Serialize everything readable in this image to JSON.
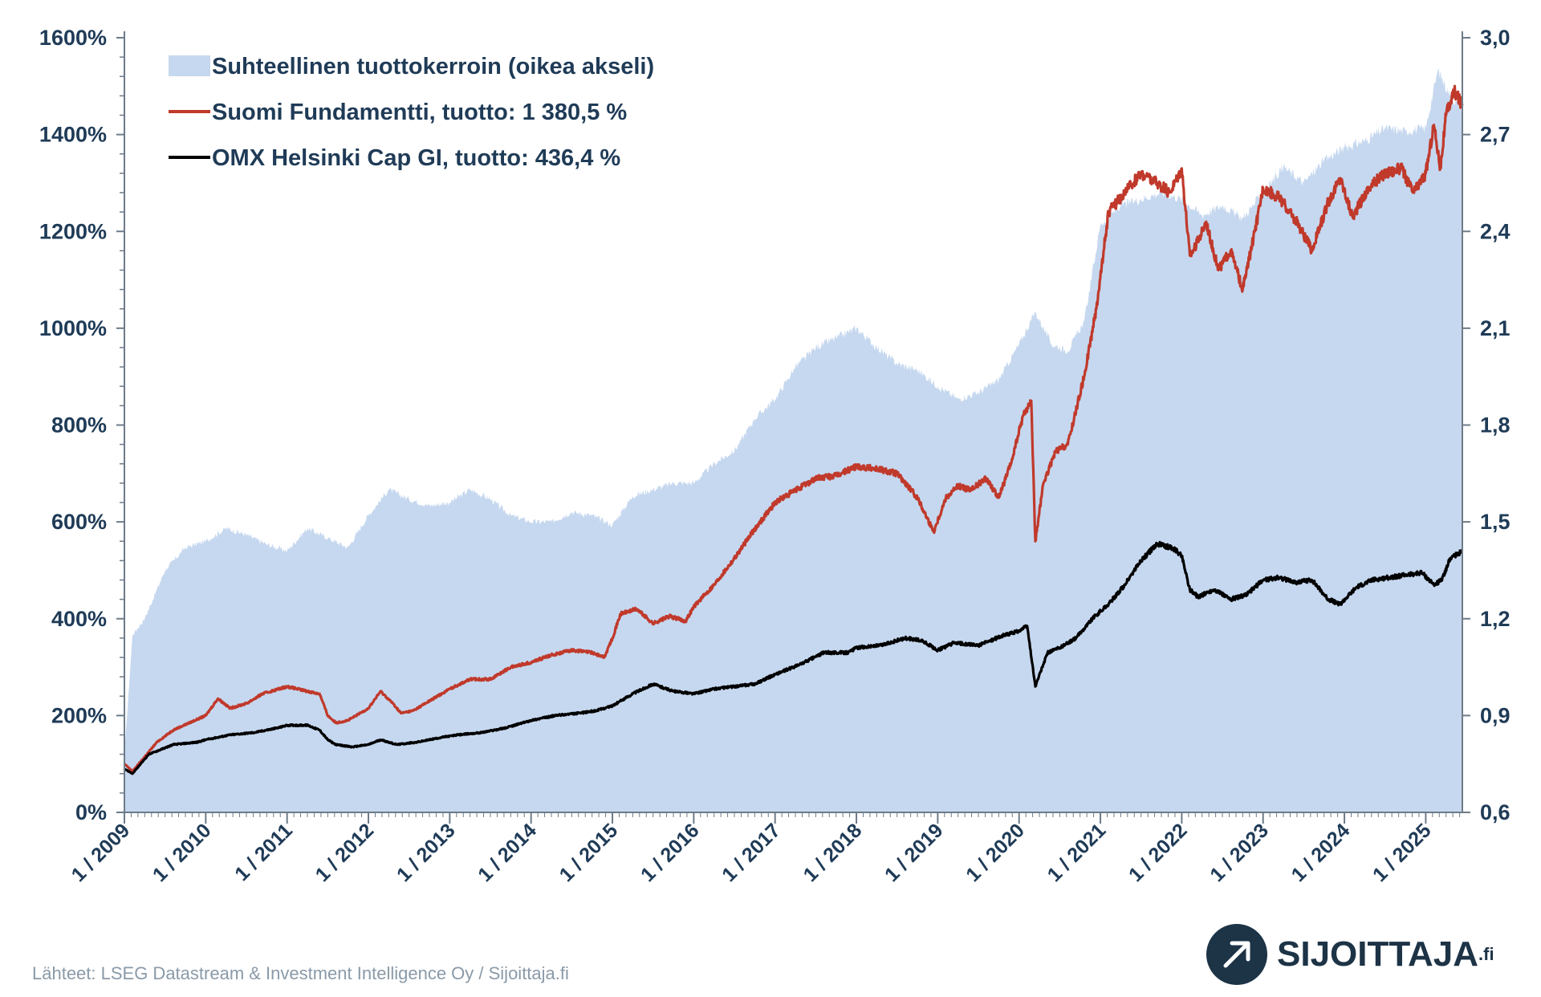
{
  "chart_data": {
    "type": "line",
    "title": "",
    "left_axis": {
      "ylim": [
        0,
        1600
      ],
      "ticks": [
        "0%",
        "200%",
        "400%",
        "600%",
        "800%",
        "1000%",
        "1200%",
        "1400%",
        "1600%"
      ],
      "tick_values": [
        0,
        200,
        400,
        600,
        800,
        1000,
        1200,
        1400,
        1600
      ]
    },
    "right_axis": {
      "ylim": [
        0.6,
        3.0
      ],
      "ticks": [
        "0,6",
        "0,9",
        "1,2",
        "1,5",
        "1,8",
        "2,1",
        "2,4",
        "2,7",
        "3,0"
      ],
      "tick_values": [
        0.6,
        0.9,
        1.2,
        1.5,
        1.8,
        2.1,
        2.4,
        2.7,
        3.0
      ]
    },
    "x_axis": {
      "range": [
        2009.0,
        2025.45
      ],
      "ticks": [
        "1 / 2009",
        "1 / 2010",
        "1 / 2011",
        "1 / 2012",
        "1 / 2013",
        "1 / 2014",
        "1 / 2015",
        "1 / 2016",
        "1 / 2017",
        "1 / 2018",
        "1 / 2019",
        "1 / 2020",
        "1 / 2021",
        "1 / 2022",
        "1 / 2023",
        "1 / 2024",
        "1 / 2025"
      ],
      "tick_years": [
        2009,
        2010,
        2011,
        2012,
        2013,
        2014,
        2015,
        2016,
        2017,
        2018,
        2019,
        2020,
        2021,
        2022,
        2023,
        2024,
        2025
      ]
    },
    "grid": false,
    "legend_position": "top-left",
    "series": [
      {
        "name": "Suhteellinen tuottokerroin (oikea akseli)",
        "type": "area",
        "axis": "right",
        "color": "#c6d8ef",
        "x": [
          2009.0,
          2009.1,
          2009.25,
          2009.5,
          2009.75,
          2010.0,
          2010.25,
          2010.5,
          2010.75,
          2011.0,
          2011.25,
          2011.5,
          2011.75,
          2012.0,
          2012.25,
          2012.5,
          2012.75,
          2013.0,
          2013.25,
          2013.5,
          2013.75,
          2014.0,
          2014.25,
          2014.5,
          2014.75,
          2015.0,
          2015.25,
          2015.5,
          2015.75,
          2016.0,
          2016.25,
          2016.5,
          2016.75,
          2017.0,
          2017.25,
          2017.5,
          2017.75,
          2018.0,
          2018.25,
          2018.5,
          2018.75,
          2019.0,
          2019.25,
          2019.5,
          2019.75,
          2020.0,
          2020.2,
          2020.4,
          2020.6,
          2020.8,
          2021.0,
          2021.25,
          2021.5,
          2021.75,
          2022.0,
          2022.25,
          2022.5,
          2022.75,
          2023.0,
          2023.25,
          2023.5,
          2023.75,
          2024.0,
          2024.25,
          2024.5,
          2024.75,
          2025.0,
          2025.15,
          2025.3,
          2025.45
        ],
        "y": [
          0.78,
          1.15,
          1.2,
          1.35,
          1.42,
          1.44,
          1.48,
          1.46,
          1.43,
          1.41,
          1.48,
          1.45,
          1.42,
          1.52,
          1.6,
          1.57,
          1.55,
          1.56,
          1.6,
          1.57,
          1.52,
          1.5,
          1.5,
          1.53,
          1.52,
          1.49,
          1.58,
          1.6,
          1.62,
          1.62,
          1.68,
          1.72,
          1.82,
          1.88,
          1.98,
          2.04,
          2.07,
          2.1,
          2.04,
          1.99,
          1.97,
          1.92,
          1.88,
          1.9,
          1.94,
          2.05,
          2.15,
          2.05,
          2.03,
          2.12,
          2.42,
          2.48,
          2.5,
          2.52,
          2.5,
          2.45,
          2.48,
          2.44,
          2.52,
          2.6,
          2.55,
          2.62,
          2.66,
          2.68,
          2.72,
          2.71,
          2.72,
          2.9,
          2.82,
          2.78
        ]
      },
      {
        "name": "Suomi Fundamentti, tuotto: 1 380,5 %",
        "type": "line",
        "axis": "left",
        "color": "#c0392b",
        "x": [
          2009.0,
          2009.1,
          2009.2,
          2009.4,
          2009.6,
          2009.8,
          2010.0,
          2010.15,
          2010.3,
          2010.5,
          2010.7,
          2010.9,
          2011.0,
          2011.25,
          2011.4,
          2011.5,
          2011.6,
          2011.75,
          2011.9,
          2012.0,
          2012.15,
          2012.3,
          2012.4,
          2012.55,
          2012.75,
          2013.0,
          2013.25,
          2013.5,
          2013.75,
          2014.0,
          2014.25,
          2014.5,
          2014.75,
          2014.9,
          2015.0,
          2015.1,
          2015.3,
          2015.5,
          2015.7,
          2015.9,
          2016.0,
          2016.25,
          2016.5,
          2016.75,
          2017.0,
          2017.25,
          2017.5,
          2017.75,
          2018.0,
          2018.25,
          2018.5,
          2018.75,
          2018.95,
          2019.1,
          2019.25,
          2019.4,
          2019.6,
          2019.75,
          2019.9,
          2020.05,
          2020.15,
          2020.2,
          2020.3,
          2020.45,
          2020.6,
          2020.8,
          2020.95,
          2021.1,
          2021.3,
          2021.5,
          2021.7,
          2021.85,
          2022.0,
          2022.1,
          2022.2,
          2022.3,
          2022.45,
          2022.6,
          2022.75,
          2022.9,
          2023.0,
          2023.2,
          2023.45,
          2023.6,
          2023.8,
          2023.95,
          2024.1,
          2024.3,
          2024.5,
          2024.7,
          2024.85,
          2025.0,
          2025.1,
          2025.18,
          2025.25,
          2025.35,
          2025.45
        ],
        "y": [
          100,
          85,
          105,
          145,
          170,
          185,
          200,
          235,
          215,
          225,
          245,
          255,
          260,
          250,
          245,
          200,
          185,
          190,
          205,
          215,
          250,
          225,
          205,
          210,
          230,
          255,
          275,
          275,
          300,
          310,
          325,
          335,
          330,
          320,
          360,
          410,
          420,
          390,
          405,
          395,
          425,
          470,
          525,
          585,
          640,
          665,
          690,
          695,
          715,
          710,
          700,
          650,
          580,
          650,
          675,
          665,
          690,
          650,
          720,
          820,
          850,
          560,
          680,
          745,
          760,
          900,
          1040,
          1240,
          1280,
          1320,
          1300,
          1280,
          1330,
          1150,
          1180,
          1220,
          1120,
          1160,
          1080,
          1200,
          1290,
          1270,
          1210,
          1160,
          1260,
          1310,
          1230,
          1290,
          1320,
          1330,
          1280,
          1320,
          1420,
          1330,
          1440,
          1490,
          1460
        ]
      },
      {
        "name": "OMX Helsinki Cap GI, tuotto: 436,4 %",
        "type": "line",
        "axis": "left",
        "color": "#000000",
        "x": [
          2009.0,
          2009.1,
          2009.3,
          2009.6,
          2009.9,
          2010.0,
          2010.3,
          2010.6,
          2010.9,
          2011.0,
          2011.25,
          2011.4,
          2011.5,
          2011.6,
          2011.8,
          2012.0,
          2012.15,
          2012.35,
          2012.6,
          2012.9,
          2013.1,
          2013.4,
          2013.7,
          2014.0,
          2014.3,
          2014.6,
          2014.8,
          2015.0,
          2015.25,
          2015.5,
          2015.75,
          2016.0,
          2016.25,
          2016.5,
          2016.75,
          2017.0,
          2017.3,
          2017.6,
          2017.9,
          2018.0,
          2018.3,
          2018.6,
          2018.8,
          2019.0,
          2019.2,
          2019.5,
          2019.8,
          2020.0,
          2020.1,
          2020.2,
          2020.35,
          2020.5,
          2020.7,
          2020.9,
          2021.1,
          2021.3,
          2021.5,
          2021.7,
          2021.9,
          2022.0,
          2022.1,
          2022.2,
          2022.4,
          2022.6,
          2022.8,
          2023.0,
          2023.2,
          2023.4,
          2023.6,
          2023.8,
          2023.95,
          2024.15,
          2024.35,
          2024.55,
          2024.75,
          2024.95,
          2025.1,
          2025.2,
          2025.3,
          2025.45
        ],
        "y": [
          90,
          80,
          120,
          140,
          145,
          150,
          160,
          165,
          175,
          180,
          180,
          170,
          150,
          140,
          135,
          140,
          150,
          140,
          145,
          155,
          160,
          165,
          175,
          190,
          200,
          205,
          210,
          220,
          245,
          265,
          250,
          245,
          255,
          260,
          265,
          285,
          305,
          330,
          330,
          340,
          345,
          360,
          355,
          335,
          350,
          345,
          365,
          375,
          385,
          260,
          330,
          340,
          360,
          400,
          430,
          470,
          520,
          555,
          545,
          530,
          460,
          445,
          460,
          440,
          450,
          480,
          485,
          475,
          480,
          440,
          430,
          465,
          480,
          485,
          490,
          495,
          470,
          480,
          525,
          540
        ]
      }
    ],
    "legend": [
      {
        "label": "Suhteellinen tuottokerroin (oikea akseli)",
        "swatch": "area",
        "color": "#c6d8ef"
      },
      {
        "label": "Suomi Fundamentti, tuotto: 1 380,5 %",
        "swatch": "line",
        "color": "#c0392b"
      },
      {
        "label": "OMX Helsinki Cap GI, tuotto: 436,4 %",
        "swatch": "line",
        "color": "#000000"
      }
    ]
  },
  "footer": {
    "source": "Lähteet: LSEG Datastream & Investment Intelligence Oy / Sijoittaja.fi"
  },
  "logo": {
    "name": "SIJOITTAJA",
    "suffix": ".fi",
    "icon": "arrow-up-right-icon",
    "color": "#1d3346"
  },
  "colors": {
    "axis_text": "#1f3b57",
    "axis_line": "#6d7b88"
  }
}
